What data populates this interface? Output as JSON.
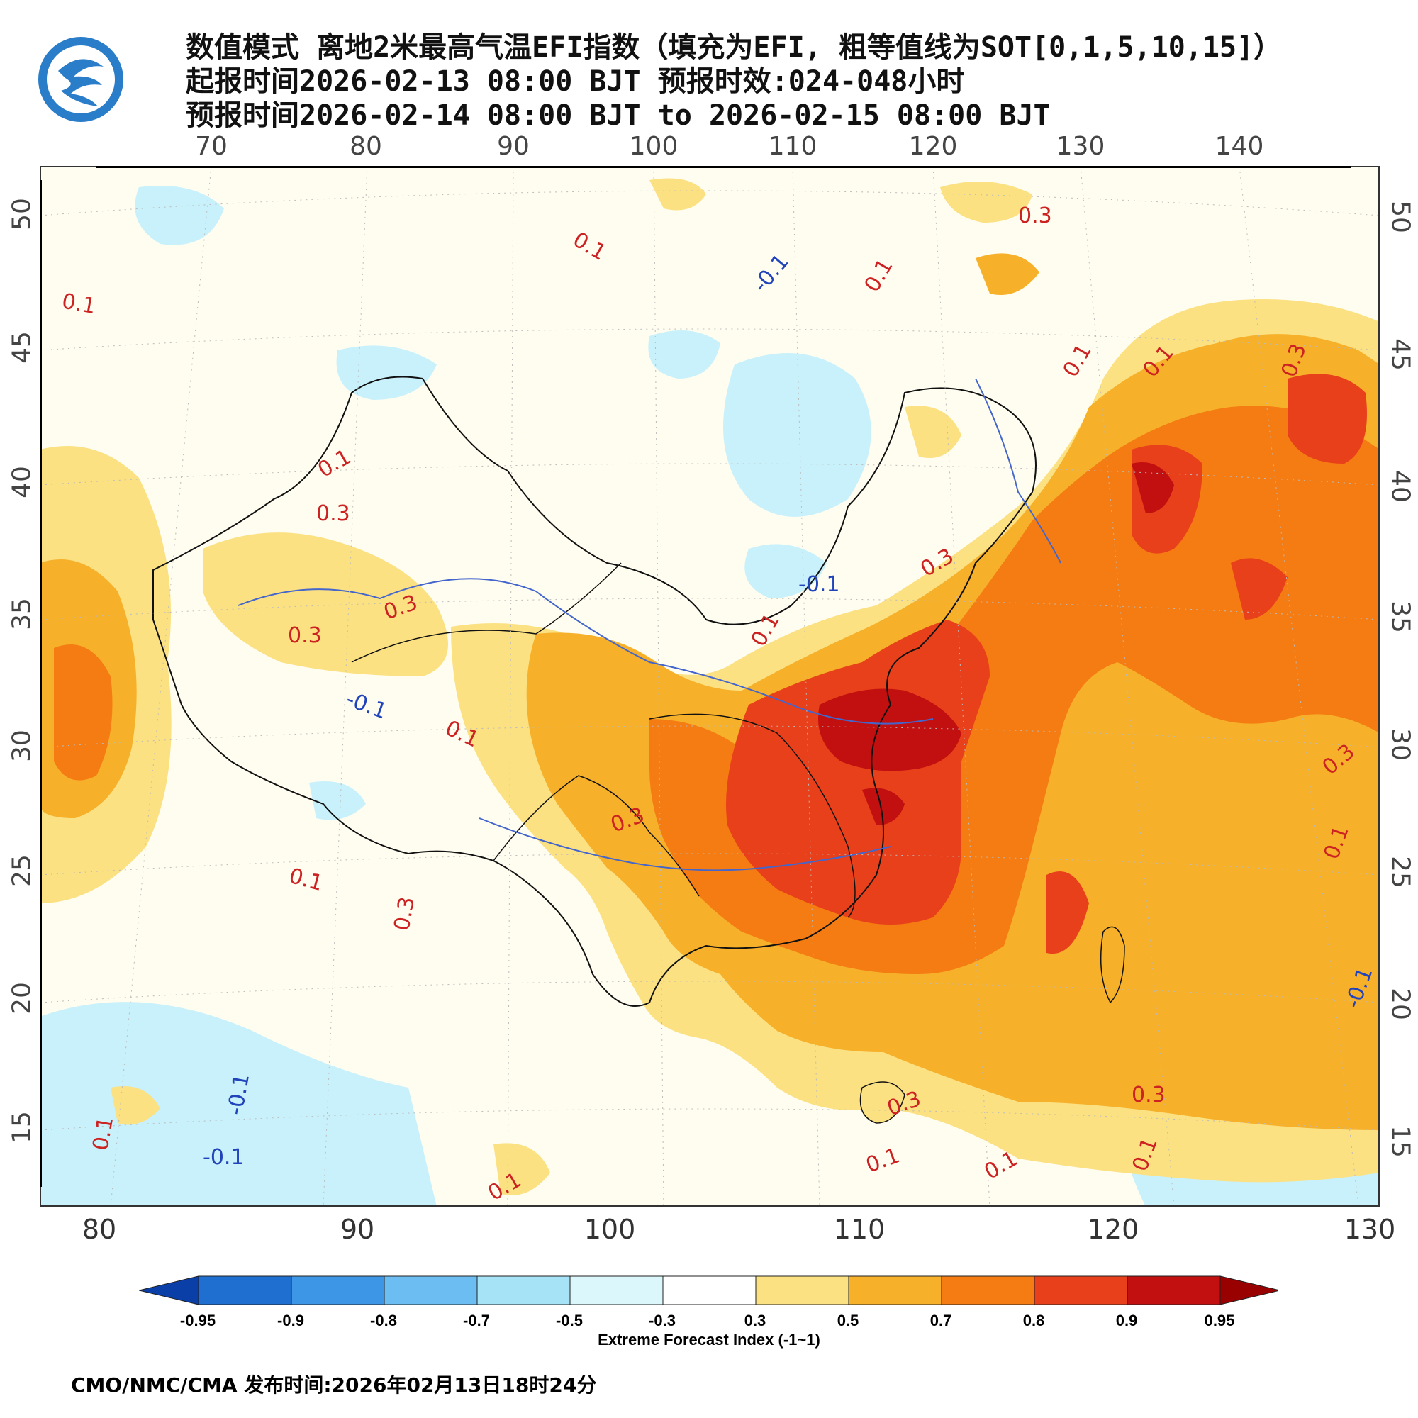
{
  "header": {
    "line1": "数值模式 离地2米最高气温EFI指数（填充为EFI, 粗等值线为SOT[0,1,5,10,15]）",
    "line2": "起报时间2026-02-13 08:00 BJT 预报时效:024-048小时",
    "line3": "预报时间2026-02-14 08:00 BJT to 2026-02-15 08:00 BJT"
  },
  "axes": {
    "top_ticks": [
      "70",
      "80",
      "90",
      "100",
      "110",
      "120",
      "130",
      "140"
    ],
    "bottom_ticks": [
      "80",
      "90",
      "100",
      "110",
      "120",
      "130"
    ],
    "left_ticks": [
      "50",
      "45",
      "40",
      "35",
      "30",
      "25",
      "20",
      "15"
    ],
    "right_ticks": [
      "50",
      "45",
      "40",
      "35",
      "30",
      "25",
      "20",
      "15"
    ]
  },
  "contour_labels": [
    {
      "text": "0.1",
      "color": "#cc2222"
    },
    {
      "text": "0.1",
      "color": "#cc2222"
    },
    {
      "text": "-0.1",
      "color": "#2244bb"
    },
    {
      "text": "0.1",
      "color": "#cc2222"
    },
    {
      "text": "0.3",
      "color": "#cc2222"
    },
    {
      "text": "0.1",
      "color": "#cc2222"
    },
    {
      "text": "0.1",
      "color": "#cc2222"
    },
    {
      "text": "0.3",
      "color": "#cc2222"
    },
    {
      "text": "0.1",
      "color": "#cc2222"
    },
    {
      "text": "0.3",
      "color": "#cc2222"
    },
    {
      "text": "0.3",
      "color": "#cc2222"
    },
    {
      "text": "0.3",
      "color": "#cc2222"
    },
    {
      "text": "0.3",
      "color": "#cc2222"
    },
    {
      "text": "-0.1",
      "color": "#2244bb"
    },
    {
      "text": "0.1",
      "color": "#cc2222"
    },
    {
      "text": "-0.1",
      "color": "#2244bb"
    },
    {
      "text": "0.1",
      "color": "#cc2222"
    },
    {
      "text": "0.3",
      "color": "#cc2222"
    },
    {
      "text": "0.1",
      "color": "#cc2222"
    },
    {
      "text": "0.3",
      "color": "#cc2222"
    },
    {
      "text": "0.3",
      "color": "#cc2222"
    },
    {
      "text": "0.1",
      "color": "#cc2222"
    },
    {
      "text": "-0.1",
      "color": "#2244bb"
    },
    {
      "text": "0.1",
      "color": "#cc2222"
    },
    {
      "text": "-0.1",
      "color": "#2244bb"
    },
    {
      "text": "0.3",
      "color": "#cc2222"
    },
    {
      "text": "0.1",
      "color": "#cc2222"
    },
    {
      "text": "0.1",
      "color": "#cc2222"
    },
    {
      "text": "0.3",
      "color": "#cc2222"
    },
    {
      "text": "0.1",
      "color": "#cc2222"
    },
    {
      "text": "-0.1",
      "color": "#2244bb"
    },
    {
      "text": "0.1",
      "color": "#cc2222"
    }
  ],
  "colorbar": {
    "title": "Extreme Forecast Index (-1~1)",
    "labels": [
      "-0.95",
      "-0.9",
      "-0.8",
      "-0.7",
      "-0.5",
      "-0.3",
      "0.3",
      "0.5",
      "0.7",
      "0.8",
      "0.9",
      "0.95"
    ],
    "colors": [
      "#0a3fa8",
      "#1f6fd0",
      "#3d96e6",
      "#6cbdf2",
      "#a6e3f7",
      "#dcf7fb",
      "#ffffff",
      "#fbe182",
      "#f6b02a",
      "#f47c12",
      "#e8401a",
      "#c20f0f",
      "#990000"
    ]
  },
  "footer": "CMO/NMC/CMA 发布时间:2026年02月13日18时24分"
}
